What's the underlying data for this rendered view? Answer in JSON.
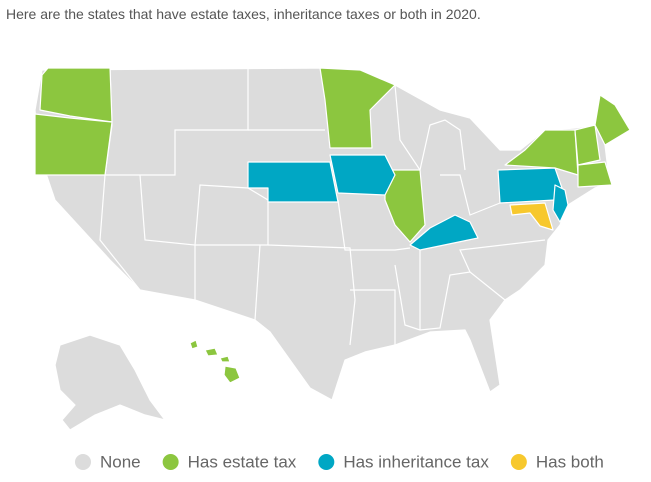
{
  "title": "Here are the states that have estate taxes, inheritance taxes or both in 2020.",
  "legend": [
    {
      "label": "None",
      "color": "#dcdcdc"
    },
    {
      "label": "Has estate tax",
      "color": "#8cc63f"
    },
    {
      "label": "Has inheritance tax",
      "color": "#00a7c4"
    },
    {
      "label": "Has both",
      "color": "#f7c82d"
    }
  ]
}
